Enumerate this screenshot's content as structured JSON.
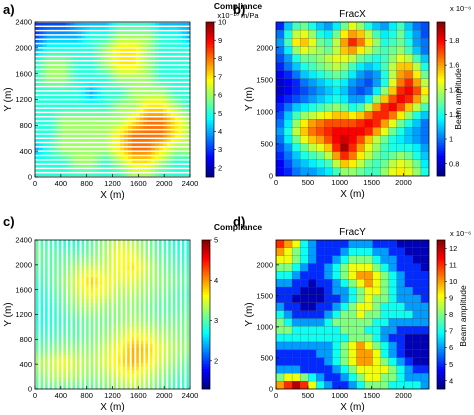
{
  "chart_data": [
    {
      "panel": "a)",
      "type": "heatmap",
      "style": "horizontal-stripes",
      "title": "",
      "xlabel": "X (m)",
      "ylabel": "Y (m)",
      "xlim": [
        0,
        2400
      ],
      "ylim": [
        0,
        2400
      ],
      "xticks": [
        "0",
        "400",
        "800",
        "1200",
        "1600",
        "2000",
        "2400"
      ],
      "yticks": [
        "0",
        "400",
        "800",
        "1200",
        "1600",
        "2000",
        "2400"
      ],
      "colorbar": {
        "title": "Compliance",
        "units": "x10⁻¹⁰ m/Pa",
        "range": [
          1.5,
          10
        ],
        "ticks": [
          "2",
          "3",
          "4",
          "5",
          "6",
          "7",
          "8",
          "9",
          "10"
        ]
      },
      "grid": [
        [
          3,
          3,
          3,
          4,
          4,
          4,
          5,
          5,
          5,
          4,
          4,
          4
        ],
        [
          3,
          4,
          4,
          4,
          5,
          5,
          6,
          6,
          6,
          5,
          5,
          4
        ],
        [
          4,
          5,
          5,
          5,
          5,
          6,
          7,
          7,
          6,
          5,
          5,
          5
        ],
        [
          5,
          6,
          6,
          5,
          5,
          6,
          7,
          7,
          6,
          5,
          5,
          5
        ],
        [
          5,
          6,
          6,
          5,
          5,
          5,
          6,
          6,
          6,
          5,
          5,
          5
        ],
        [
          5,
          5,
          5,
          5,
          4,
          5,
          5,
          6,
          6,
          6,
          5,
          5
        ],
        [
          5,
          5,
          5,
          5,
          5,
          5,
          6,
          6,
          7,
          7,
          6,
          5
        ],
        [
          5,
          5,
          6,
          6,
          6,
          6,
          6,
          7,
          8,
          8,
          7,
          6
        ],
        [
          5,
          5,
          6,
          6,
          6,
          6,
          7,
          8,
          8,
          8,
          7,
          6
        ],
        [
          4,
          5,
          6,
          6,
          6,
          6,
          7,
          8,
          8,
          7,
          6,
          6
        ],
        [
          5,
          5,
          5,
          6,
          6,
          5,
          6,
          7,
          7,
          6,
          5,
          5
        ],
        [
          5,
          5,
          5,
          5,
          5,
          5,
          5,
          6,
          6,
          5,
          5,
          5
        ]
      ]
    },
    {
      "panel": "b)",
      "type": "heatmap",
      "style": "cells",
      "title": "FracX",
      "xlabel": "X (m)",
      "ylabel": "Y (m)",
      "xlim": [
        0,
        2400
      ],
      "ylim": [
        0,
        2400
      ],
      "xticks": [
        "0",
        "500",
        "1000",
        "1500",
        "2000"
      ],
      "yticks": [
        "0",
        "500",
        "1000",
        "1500",
        "2000"
      ],
      "colorbar": {
        "title": "Beam amplitude",
        "units": "x 10⁻⁶",
        "range": [
          0.7,
          1.95
        ],
        "ticks": [
          "0.8",
          "1",
          "1.2",
          "1.4",
          "1.6",
          "1.8"
        ]
      },
      "grid": [
        [
          0.9,
          1.1,
          1.25,
          1.3,
          1.2,
          1.1,
          1.05,
          1.15,
          1.3,
          1.45,
          1.35,
          1.2,
          1.1,
          1.05,
          1.15,
          1.25,
          1.1,
          1.0,
          0.95
        ],
        [
          1.0,
          1.2,
          1.4,
          1.45,
          1.35,
          1.2,
          1.15,
          1.3,
          1.5,
          1.6,
          1.55,
          1.4,
          1.25,
          1.15,
          1.2,
          1.3,
          1.15,
          1.05,
          0.95
        ],
        [
          1.05,
          1.25,
          1.5,
          1.55,
          1.45,
          1.3,
          1.25,
          1.4,
          1.6,
          1.75,
          1.65,
          1.5,
          1.35,
          1.2,
          1.25,
          1.3,
          1.2,
          1.05,
          1.0
        ],
        [
          1.0,
          1.15,
          1.35,
          1.45,
          1.4,
          1.35,
          1.3,
          1.4,
          1.55,
          1.6,
          1.5,
          1.4,
          1.3,
          1.25,
          1.3,
          1.35,
          1.25,
          1.1,
          1.0
        ],
        [
          0.95,
          1.05,
          1.2,
          1.3,
          1.3,
          1.35,
          1.4,
          1.45,
          1.45,
          1.4,
          1.3,
          1.25,
          1.2,
          1.25,
          1.35,
          1.45,
          1.4,
          1.25,
          1.1
        ],
        [
          0.9,
          1.0,
          1.1,
          1.2,
          1.25,
          1.3,
          1.35,
          1.4,
          1.35,
          1.25,
          1.15,
          1.1,
          1.15,
          1.25,
          1.4,
          1.55,
          1.55,
          1.4,
          1.2
        ],
        [
          0.85,
          0.9,
          1.0,
          1.1,
          1.15,
          1.2,
          1.25,
          1.3,
          1.25,
          1.15,
          1.05,
          1.0,
          1.05,
          1.2,
          1.4,
          1.6,
          1.65,
          1.5,
          1.3
        ],
        [
          0.8,
          0.85,
          0.9,
          1.0,
          1.05,
          1.1,
          1.15,
          1.2,
          1.15,
          1.05,
          1.0,
          0.95,
          1.05,
          1.2,
          1.45,
          1.65,
          1.75,
          1.6,
          1.4
        ],
        [
          0.8,
          0.85,
          0.9,
          0.95,
          1.0,
          1.05,
          1.1,
          1.15,
          1.1,
          1.0,
          0.95,
          1.0,
          1.15,
          1.35,
          1.55,
          1.75,
          1.8,
          1.7,
          1.5
        ],
        [
          0.85,
          0.9,
          0.95,
          1.0,
          1.05,
          1.1,
          1.15,
          1.2,
          1.15,
          1.05,
          1.05,
          1.15,
          1.35,
          1.55,
          1.7,
          1.8,
          1.75,
          1.6,
          1.4
        ],
        [
          0.9,
          1.0,
          1.1,
          1.15,
          1.2,
          1.25,
          1.3,
          1.35,
          1.3,
          1.2,
          1.25,
          1.4,
          1.6,
          1.75,
          1.8,
          1.7,
          1.55,
          1.4,
          1.25
        ],
        [
          0.95,
          1.1,
          1.25,
          1.35,
          1.4,
          1.45,
          1.5,
          1.55,
          1.55,
          1.5,
          1.55,
          1.65,
          1.75,
          1.75,
          1.65,
          1.5,
          1.35,
          1.2,
          1.1
        ],
        [
          1.0,
          1.15,
          1.35,
          1.5,
          1.6,
          1.65,
          1.7,
          1.7,
          1.7,
          1.7,
          1.75,
          1.8,
          1.75,
          1.6,
          1.45,
          1.3,
          1.2,
          1.1,
          1.0
        ],
        [
          1.05,
          1.2,
          1.4,
          1.55,
          1.65,
          1.7,
          1.75,
          1.8,
          1.8,
          1.8,
          1.8,
          1.75,
          1.6,
          1.45,
          1.3,
          1.2,
          1.1,
          1.05,
          1.0
        ],
        [
          1.0,
          1.15,
          1.3,
          1.45,
          1.55,
          1.6,
          1.7,
          1.8,
          1.85,
          1.8,
          1.7,
          1.55,
          1.4,
          1.3,
          1.2,
          1.15,
          1.1,
          1.05,
          1.0
        ],
        [
          0.95,
          1.05,
          1.2,
          1.3,
          1.4,
          1.45,
          1.55,
          1.75,
          1.9,
          1.75,
          1.6,
          1.45,
          1.35,
          1.25,
          1.2,
          1.2,
          1.2,
          1.15,
          1.05
        ],
        [
          0.9,
          1.0,
          1.1,
          1.2,
          1.25,
          1.3,
          1.4,
          1.6,
          1.75,
          1.65,
          1.5,
          1.4,
          1.3,
          1.25,
          1.3,
          1.35,
          1.3,
          1.2,
          1.1
        ],
        [
          0.85,
          0.95,
          1.05,
          1.1,
          1.15,
          1.2,
          1.25,
          1.4,
          1.55,
          1.5,
          1.4,
          1.3,
          1.25,
          1.3,
          1.4,
          1.45,
          1.4,
          1.3,
          1.15
        ],
        [
          0.85,
          0.9,
          1.0,
          1.05,
          1.05,
          1.1,
          1.15,
          1.25,
          1.35,
          1.35,
          1.3,
          1.25,
          1.25,
          1.35,
          1.45,
          1.5,
          1.45,
          1.35,
          1.2
        ]
      ]
    },
    {
      "panel": "c)",
      "type": "heatmap",
      "style": "vertical-stripes",
      "title": "",
      "xlabel": "X (m)",
      "ylabel": "Y (m)",
      "xlim": [
        0,
        2400
      ],
      "ylim": [
        0,
        2400
      ],
      "xticks": [
        "0",
        "400",
        "800",
        "1200",
        "1600",
        "2000",
        "2400"
      ],
      "yticks": [
        "0",
        "400",
        "800",
        "1200",
        "1600",
        "2000",
        "2400"
      ],
      "colorbar": {
        "title": "Compliance",
        "units": "",
        "range": [
          1.3,
          5
        ],
        "ticks": [
          "2",
          "3",
          "4",
          "5"
        ]
      },
      "grid": [
        [
          3.0,
          2.9,
          2.8,
          2.8,
          3.0,
          3.2,
          3.4,
          3.3,
          3.1,
          2.9,
          2.8,
          2.8
        ],
        [
          3.1,
          3.0,
          3.0,
          3.0,
          3.1,
          3.3,
          3.6,
          3.5,
          3.2,
          3.0,
          2.9,
          2.8
        ],
        [
          3.0,
          3.0,
          3.1,
          3.3,
          3.4,
          3.4,
          3.6,
          3.7,
          3.4,
          3.1,
          3.0,
          2.9
        ],
        [
          2.9,
          3.0,
          3.2,
          3.5,
          3.8,
          3.6,
          3.5,
          3.5,
          3.3,
          3.2,
          3.1,
          3.0
        ],
        [
          2.8,
          2.9,
          3.1,
          3.4,
          3.6,
          3.5,
          3.3,
          3.3,
          3.2,
          3.1,
          3.0,
          2.9
        ],
        [
          2.8,
          2.8,
          3.0,
          3.2,
          3.3,
          3.2,
          3.2,
          3.2,
          3.1,
          3.0,
          3.0,
          3.0
        ],
        [
          2.8,
          2.8,
          2.9,
          3.0,
          3.1,
          3.1,
          3.2,
          3.3,
          3.2,
          3.1,
          3.1,
          3.1
        ],
        [
          2.9,
          2.9,
          3.0,
          3.0,
          3.1,
          3.2,
          3.4,
          3.6,
          3.5,
          3.3,
          3.2,
          3.1
        ],
        [
          3.0,
          3.1,
          3.2,
          3.2,
          3.2,
          3.4,
          3.6,
          3.9,
          3.8,
          3.5,
          3.3,
          3.2
        ],
        [
          3.3,
          3.4,
          3.6,
          3.4,
          3.3,
          3.5,
          3.7,
          3.9,
          3.7,
          3.4,
          3.2,
          3.0
        ],
        [
          3.1,
          3.3,
          3.4,
          3.3,
          3.2,
          3.3,
          3.5,
          3.6,
          3.4,
          3.2,
          3.0,
          2.9
        ],
        [
          3.0,
          3.0,
          3.0,
          3.0,
          3.0,
          3.1,
          3.2,
          3.3,
          3.2,
          3.0,
          2.9,
          2.8
        ]
      ]
    },
    {
      "panel": "d)",
      "type": "heatmap",
      "style": "cells",
      "title": "FracY",
      "xlabel": "X (m)",
      "ylabel": "Y (m)",
      "xlim": [
        0,
        2400
      ],
      "ylim": [
        0,
        2400
      ],
      "xticks": [
        "0",
        "500",
        "1000",
        "1500",
        "2000"
      ],
      "yticks": [
        "0",
        "500",
        "1000",
        "1500",
        "2000"
      ],
      "colorbar": {
        "title": "Beam amplitude",
        "units": "x 10⁻⁶",
        "range": [
          3.5,
          12.5
        ],
        "ticks": [
          "4",
          "5",
          "6",
          "7",
          "8",
          "9",
          "10",
          "11",
          "12"
        ]
      },
      "grid": [
        [
          11,
          10,
          9,
          7,
          6,
          5,
          5,
          5,
          5,
          6,
          6,
          6,
          5,
          5,
          5,
          4,
          4,
          4,
          4
        ],
        [
          10,
          9,
          8,
          7,
          6,
          5,
          5,
          5,
          6,
          7,
          7,
          7,
          6,
          6,
          5,
          5,
          4,
          4,
          4
        ],
        [
          9,
          9,
          8,
          7,
          6,
          5,
          5,
          6,
          7,
          8,
          8,
          8,
          7,
          6,
          6,
          5,
          5,
          4,
          4
        ],
        [
          8,
          8,
          7,
          6,
          5,
          5,
          6,
          7,
          8,
          9,
          9,
          9,
          8,
          7,
          6,
          5,
          5,
          5,
          4
        ],
        [
          7,
          7,
          6,
          5,
          5,
          5,
          6,
          7,
          8,
          9,
          10,
          10,
          9,
          8,
          7,
          6,
          5,
          5,
          5
        ],
        [
          6,
          6,
          5,
          5,
          4,
          5,
          5,
          6,
          7,
          8,
          9,
          10,
          9,
          8,
          7,
          6,
          5,
          5,
          5
        ],
        [
          5,
          5,
          5,
          4,
          4,
          4,
          5,
          6,
          6,
          7,
          8,
          9,
          9,
          8,
          7,
          6,
          6,
          5,
          5
        ],
        [
          5,
          5,
          4,
          4,
          4,
          4,
          5,
          5,
          6,
          7,
          8,
          9,
          8,
          8,
          7,
          6,
          6,
          6,
          5
        ],
        [
          6,
          5,
          5,
          4,
          4,
          5,
          5,
          6,
          7,
          8,
          9,
          9,
          8,
          7,
          7,
          7,
          6,
          6,
          6
        ],
        [
          7,
          6,
          5,
          5,
          5,
          5,
          6,
          7,
          8,
          8,
          9,
          8,
          8,
          7,
          7,
          7,
          7,
          6,
          6
        ],
        [
          8,
          7,
          6,
          6,
          6,
          6,
          7,
          8,
          8,
          8,
          8,
          8,
          7,
          7,
          6,
          6,
          6,
          6,
          6
        ],
        [
          8,
          8,
          7,
          7,
          7,
          7,
          7,
          7,
          8,
          8,
          8,
          7,
          7,
          6,
          6,
          5,
          5,
          5,
          5
        ],
        [
          7,
          7,
          7,
          7,
          7,
          7,
          7,
          7,
          7,
          8,
          8,
          8,
          7,
          6,
          5,
          5,
          4,
          4,
          4
        ],
        [
          6,
          6,
          6,
          6,
          6,
          6,
          6,
          7,
          8,
          9,
          10,
          9,
          8,
          7,
          6,
          5,
          4,
          4,
          4
        ],
        [
          5,
          5,
          5,
          5,
          5,
          6,
          6,
          7,
          8,
          9,
          10,
          10,
          9,
          7,
          6,
          5,
          4,
          4,
          4
        ],
        [
          5,
          5,
          5,
          5,
          5,
          5,
          6,
          7,
          8,
          9,
          10,
          10,
          9,
          8,
          7,
          6,
          5,
          4,
          4
        ],
        [
          6,
          6,
          6,
          5,
          5,
          5,
          5,
          6,
          7,
          8,
          9,
          9,
          9,
          9,
          8,
          7,
          6,
          5,
          5
        ],
        [
          8,
          9,
          9,
          8,
          7,
          6,
          5,
          5,
          6,
          7,
          8,
          9,
          9,
          8,
          8,
          7,
          6,
          6,
          6
        ],
        [
          10,
          11,
          12,
          11,
          9,
          7,
          6,
          5,
          5,
          6,
          7,
          8,
          8,
          8,
          7,
          7,
          7,
          7,
          6
        ]
      ]
    }
  ]
}
